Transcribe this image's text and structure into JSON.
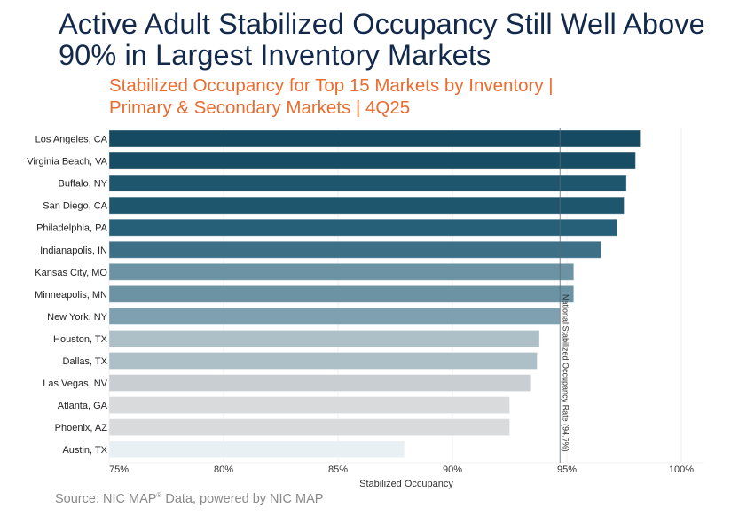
{
  "title": "Active Adult Stabilized Occupancy Still Well Above 90% in Largest Inventory Markets",
  "subtitle_line1": "Stabilized Occupancy for Top 15 Markets by Inventory |",
  "subtitle_line2": "Primary & Secondary Markets | 4Q25",
  "source": {
    "prefix": "Source: NIC MAP",
    "mark": "®",
    "suffix": " Data, powered by NIC MAP"
  },
  "chart_data": {
    "type": "bar",
    "orientation": "horizontal",
    "title": "Stabilized Occupancy for Top 15 Markets by Inventory | Primary & Secondary Markets | 4Q25",
    "xlabel": "Stabilized Occupancy",
    "ylabel": "",
    "xlim": [
      75,
      100
    ],
    "x_ticks": [
      75,
      80,
      85,
      90,
      95,
      100
    ],
    "x_tick_labels": [
      "75%",
      "80%",
      "85%",
      "90%",
      "95%",
      "100%"
    ],
    "grid": "vertical",
    "categories": [
      "Los Angeles, CA",
      "Virginia Beach, VA",
      "Buffalo, NY",
      "San Diego, CA",
      "Philadelphia, PA",
      "Indianapolis, IN",
      "Kansas City, MO",
      "Minneapolis, MN",
      "New York, NY",
      "Houston, TX",
      "Dallas, TX",
      "Las Vegas, NV",
      "Atlanta, GA",
      "Phoenix, AZ",
      "Austin, TX"
    ],
    "values": [
      98.2,
      98.0,
      97.6,
      97.5,
      97.2,
      96.5,
      95.3,
      95.3,
      94.7,
      93.8,
      93.7,
      93.4,
      92.5,
      92.5,
      87.9
    ],
    "colors": [
      "#164a62",
      "#174d65",
      "#1e566e",
      "#1e566e",
      "#265f78",
      "#3d6f87",
      "#6b93a3",
      "#6b93a3",
      "#7ea0b0",
      "#adbfc7",
      "#adbfc7",
      "#c8ced2",
      "#d9dadc",
      "#d9dadc",
      "#e8f0f4"
    ],
    "reference_line": {
      "value": 94.7,
      "label": "National Stabilized Occupancy Rate (94.7%)",
      "color": "#5a6b74"
    },
    "colors_meta": {
      "title": "#13294b",
      "subtitle": "#ec6b2d",
      "tick_text": "#333333",
      "grid": "#eeeeee"
    }
  }
}
